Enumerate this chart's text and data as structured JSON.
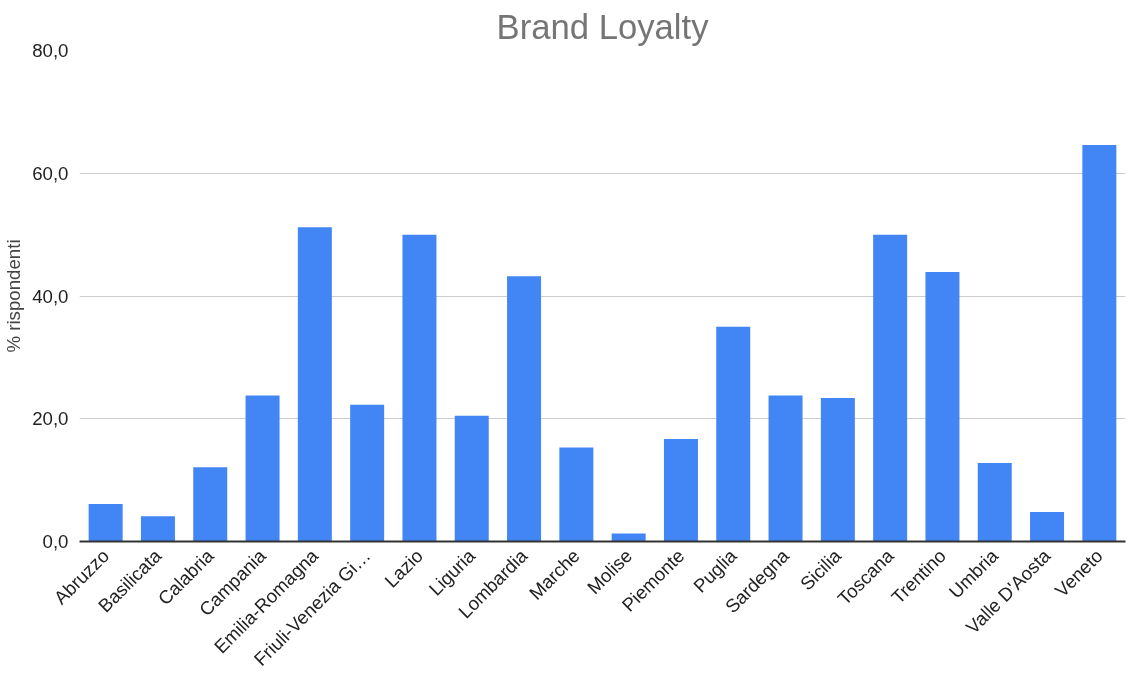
{
  "chart_data": {
    "type": "bar",
    "title": "Brand Loyalty",
    "ylabel": "% rispondenti",
    "categories": [
      "Abruzzo",
      "Basilicata",
      "Calabria",
      "Campania",
      "Emilia-Romagna",
      "Friuli-Venezia Gi…",
      "Lazio",
      "Liguria",
      "Lombardia",
      "Marche",
      "Molise",
      "Piemonte",
      "Puglia",
      "Sardegna",
      "Sicilia",
      "Toscana",
      "Trentino",
      "Umbria",
      "Valle D'Aosta",
      "Veneto"
    ],
    "values": [
      6.1,
      4.1,
      12.1,
      23.8,
      51.2,
      22.3,
      50.0,
      20.5,
      43.2,
      15.3,
      1.3,
      16.7,
      35.0,
      23.8,
      23.4,
      50.0,
      43.9,
      12.8,
      4.8,
      64.6
    ],
    "color": "#4285f4",
    "ylim": [
      0,
      80
    ],
    "yticks": [
      {
        "value": 0,
        "label": "0,0"
      },
      {
        "value": 20,
        "label": "20,0"
      },
      {
        "value": 40,
        "label": "40,0"
      },
      {
        "value": 60,
        "label": "60,0"
      },
      {
        "value": 80,
        "label": "80,0"
      }
    ],
    "grid": "y"
  }
}
